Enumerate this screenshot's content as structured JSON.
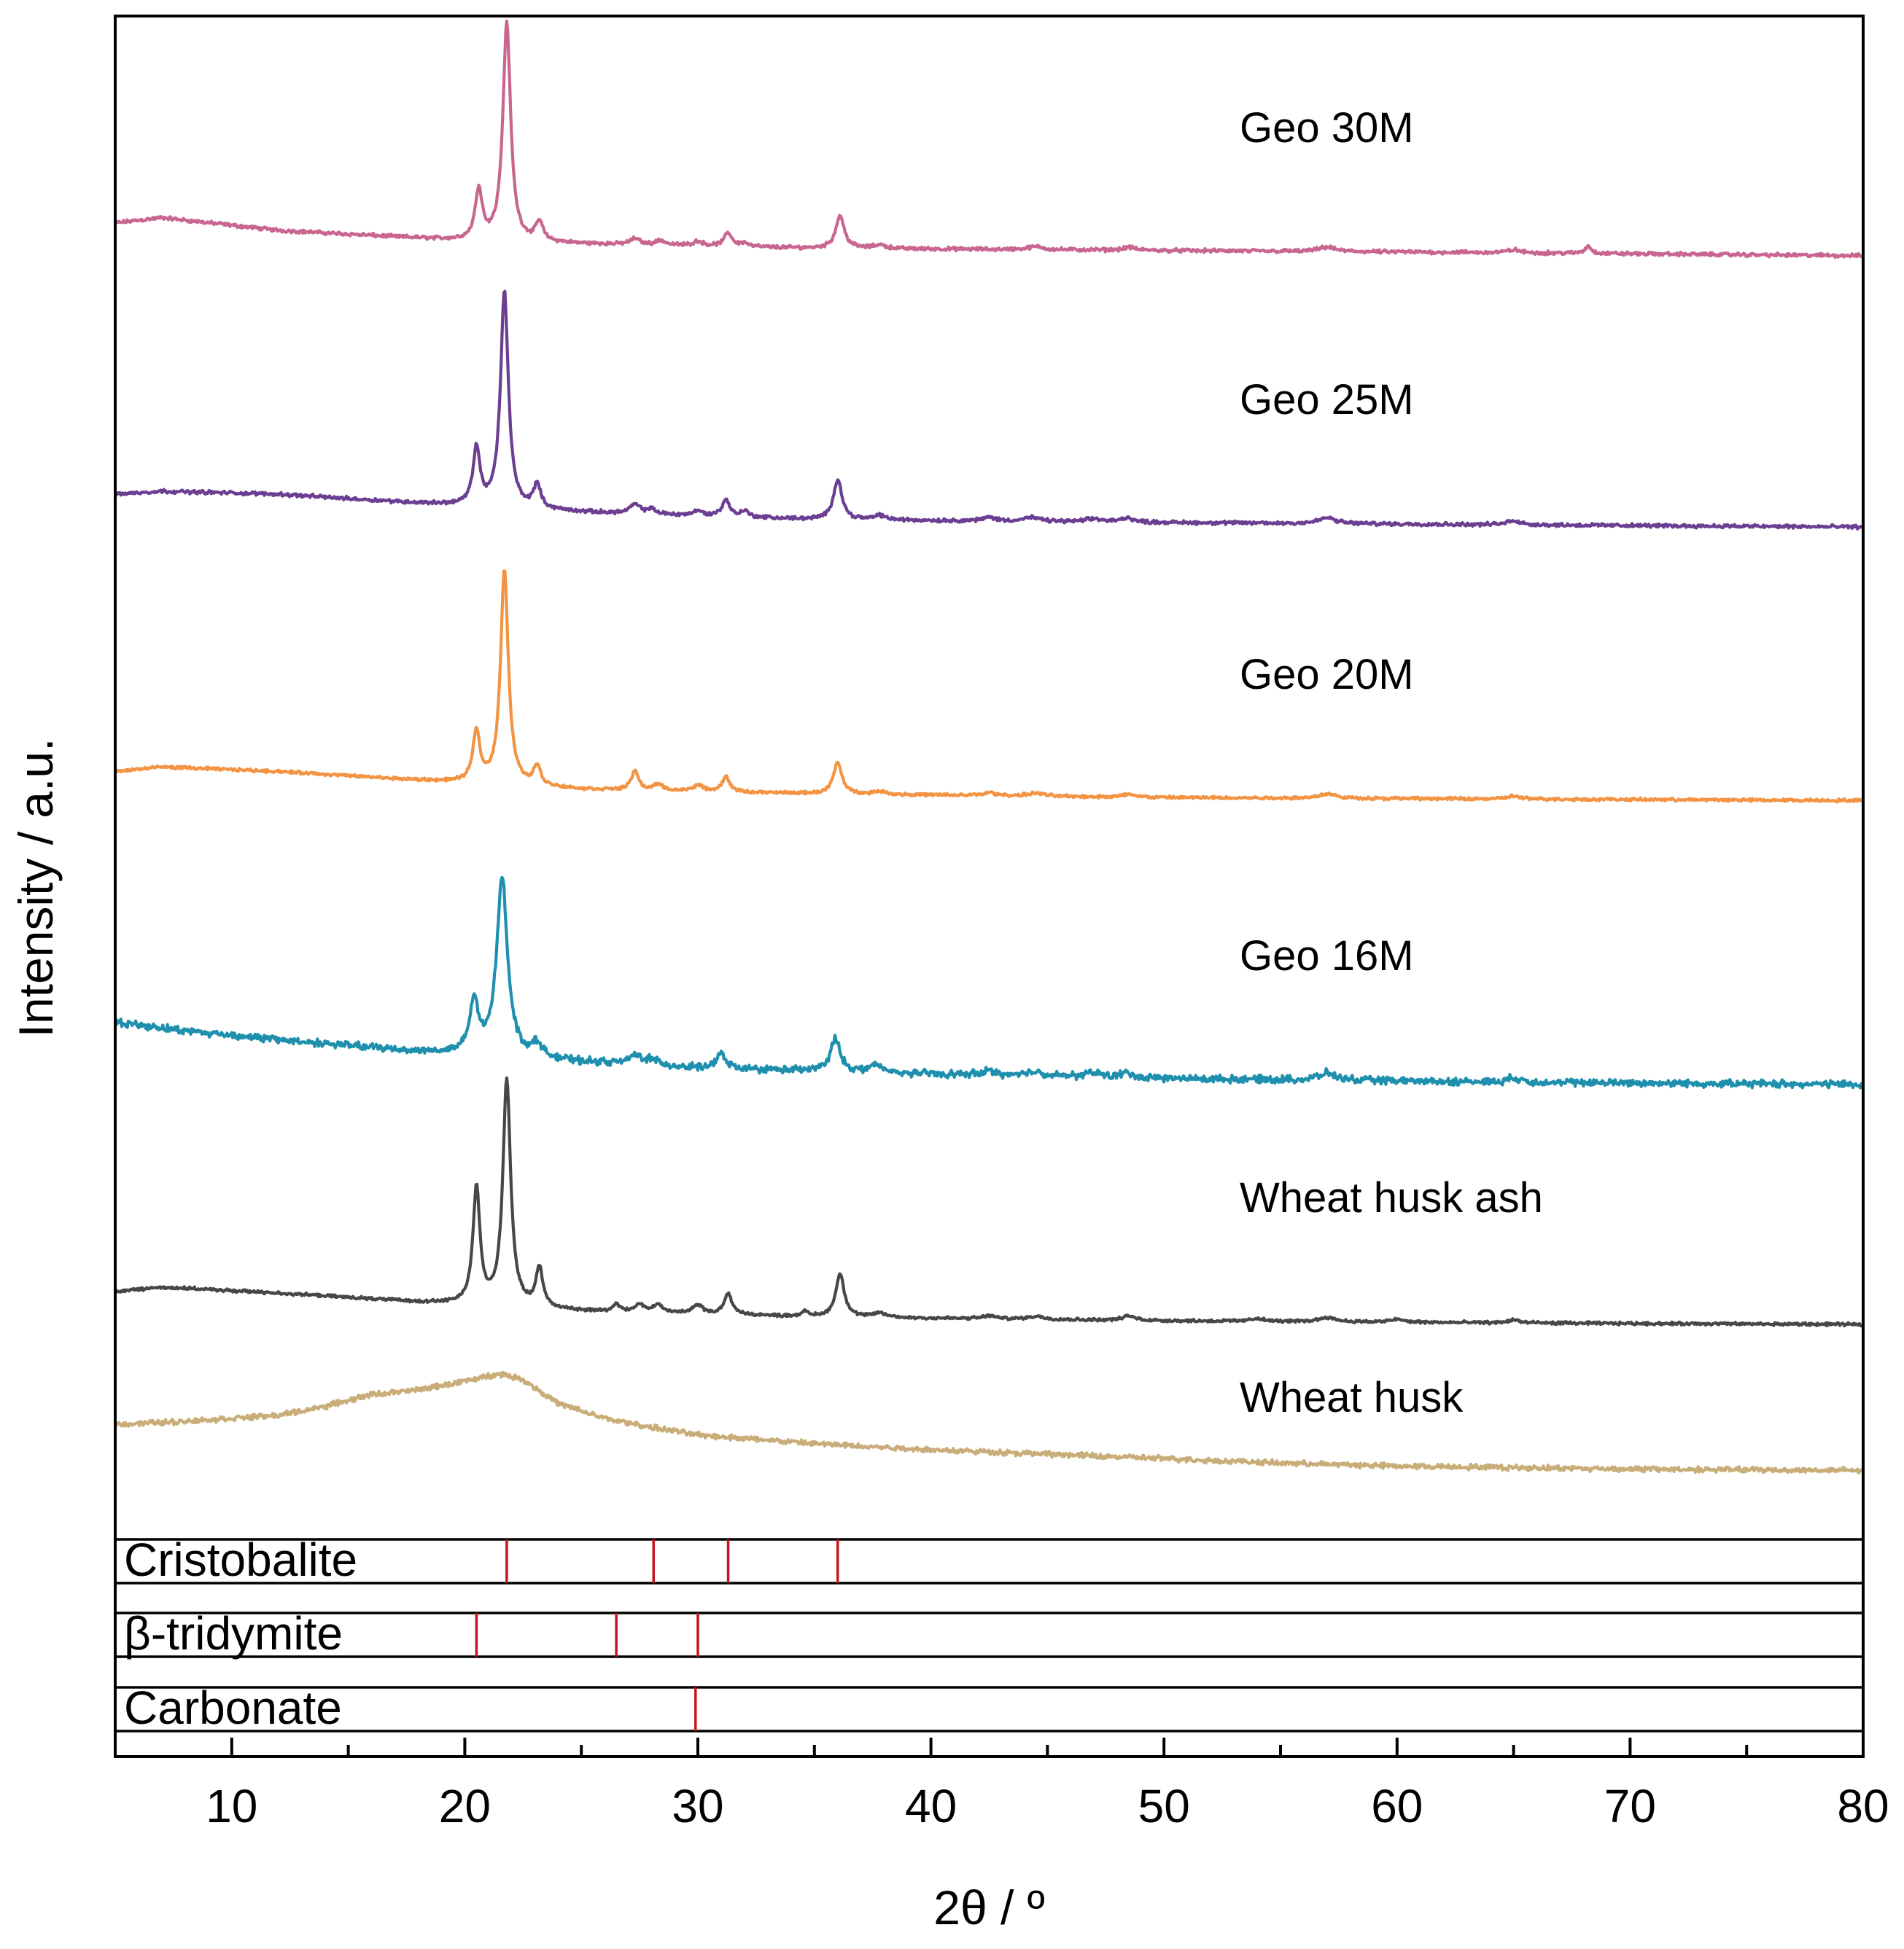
{
  "chart_data": {
    "type": "line",
    "title": "",
    "xlabel": "2θ / º",
    "ylabel": "Intensity / a.u.",
    "xlim": [
      5,
      80
    ],
    "xticks": [
      10,
      20,
      30,
      40,
      50,
      60,
      70,
      80
    ],
    "grid": false,
    "legend": "labels placed right of each curve",
    "y_units": "arbitrary (stacked offsets, 0 = bottom of plotting area, 100 = top)",
    "series": [
      {
        "name": "Geo 30M",
        "color": "#c8668f",
        "noise": 0.15,
        "baseline": [
          [
            5,
            87.0
          ],
          [
            7,
            87.35
          ],
          [
            12,
            86.5
          ],
          [
            20,
            85.8
          ],
          [
            25,
            85.6
          ],
          [
            35,
            85.3
          ],
          [
            50,
            85.15
          ],
          [
            65,
            85.0
          ],
          [
            80,
            84.8
          ]
        ],
        "peaks": [
          [
            20.6,
            3.4,
            0.18
          ],
          [
            21.8,
            14.6,
            0.2
          ],
          [
            23.2,
            1.3,
            0.18
          ],
          [
            27.3,
            0.4,
            0.25
          ],
          [
            28.4,
            0.3,
            0.25
          ],
          [
            30.0,
            0.3,
            0.25
          ],
          [
            31.3,
            0.9,
            0.2
          ],
          [
            32.0,
            0.25,
            0.2
          ],
          [
            36.1,
            2.2,
            0.22
          ],
          [
            37.8,
            0.25,
            0.3
          ],
          [
            44.5,
            0.2,
            0.4
          ],
          [
            48.5,
            0.2,
            0.3
          ],
          [
            57.0,
            0.3,
            0.4
          ],
          [
            65.0,
            0.2,
            0.3
          ],
          [
            68.2,
            0.5,
            0.15
          ]
        ]
      },
      {
        "name": "Geo 25M",
        "color": "#6b3e91",
        "noise": 0.15,
        "baseline": [
          [
            5,
            68.8
          ],
          [
            7,
            69.0
          ],
          [
            12,
            68.8
          ],
          [
            18,
            68.2
          ],
          [
            25,
            67.6
          ],
          [
            35,
            67.1
          ],
          [
            50,
            66.9
          ],
          [
            65,
            66.75
          ],
          [
            80,
            66.6
          ]
        ],
        "peaks": [
          [
            20.5,
            3.8,
            0.18
          ],
          [
            21.7,
            14.5,
            0.2
          ],
          [
            23.1,
            1.6,
            0.18
          ],
          [
            27.3,
            0.6,
            0.25
          ],
          [
            28.0,
            0.3,
            0.25
          ],
          [
            30.0,
            0.3,
            0.25
          ],
          [
            31.2,
            1.1,
            0.2
          ],
          [
            32.0,
            0.4,
            0.2
          ],
          [
            36.0,
            2.7,
            0.22
          ],
          [
            37.8,
            0.3,
            0.3
          ],
          [
            42.5,
            0.25,
            0.3
          ],
          [
            44.3,
            0.25,
            0.4
          ],
          [
            47.0,
            0.2,
            0.4
          ],
          [
            48.4,
            0.3,
            0.3
          ],
          [
            57.0,
            0.4,
            0.4
          ],
          [
            65.0,
            0.3,
            0.3
          ]
        ]
      },
      {
        "name": "Geo 20M",
        "color": "#f39344",
        "noise": 0.12,
        "baseline": [
          [
            5,
            50.2
          ],
          [
            7,
            50.5
          ],
          [
            12,
            50.2
          ],
          [
            18,
            49.6
          ],
          [
            25,
            49.0
          ],
          [
            35,
            48.7
          ],
          [
            50,
            48.45
          ],
          [
            65,
            48.35
          ],
          [
            80,
            48.25
          ]
        ],
        "peaks": [
          [
            20.5,
            3.4,
            0.18
          ],
          [
            21.7,
            14.4,
            0.2
          ],
          [
            23.1,
            1.3,
            0.18
          ],
          [
            27.3,
            1.3,
            0.18
          ],
          [
            28.3,
            0.4,
            0.25
          ],
          [
            30.0,
            0.4,
            0.25
          ],
          [
            31.2,
            1.0,
            0.2
          ],
          [
            36.0,
            2.1,
            0.22
          ],
          [
            37.8,
            0.2,
            0.3
          ],
          [
            42.5,
            0.2,
            0.3
          ],
          [
            44.5,
            0.2,
            0.4
          ],
          [
            48.5,
            0.2,
            0.3
          ],
          [
            57.0,
            0.3,
            0.4
          ],
          [
            65.0,
            0.2,
            0.3
          ]
        ]
      },
      {
        "name": "Geo 16M",
        "color": "#1e8fad",
        "noise": 0.3,
        "baseline": [
          [
            5,
            33.4
          ],
          [
            8,
            32.8
          ],
          [
            12,
            32.2
          ],
          [
            18,
            31.4
          ],
          [
            25,
            30.7
          ],
          [
            30,
            30.3
          ],
          [
            40,
            29.9
          ],
          [
            50,
            29.6
          ],
          [
            65,
            29.35
          ],
          [
            80,
            29.2
          ]
        ],
        "peaks": [
          [
            20.4,
            3.5,
            0.22
          ],
          [
            21.6,
            12.0,
            0.28
          ],
          [
            23.1,
            0.9,
            0.25
          ],
          [
            27.3,
            0.6,
            0.3
          ],
          [
            28.0,
            0.4,
            0.3
          ],
          [
            31.0,
            1.0,
            0.22
          ],
          [
            35.9,
            2.2,
            0.25
          ],
          [
            37.6,
            0.5,
            0.3
          ],
          [
            42.5,
            0.3,
            0.3
          ],
          [
            44.5,
            0.3,
            0.4
          ],
          [
            47.0,
            0.3,
            0.4
          ],
          [
            48.4,
            0.3,
            0.3
          ],
          [
            57.0,
            0.5,
            0.4
          ],
          [
            65.0,
            0.3,
            0.3
          ]
        ]
      },
      {
        "name": "Wheat husk ash",
        "color": "#474747",
        "noise": 0.12,
        "baseline": [
          [
            5,
            15.3
          ],
          [
            7,
            15.6
          ],
          [
            12,
            15.2
          ],
          [
            18,
            14.6
          ],
          [
            25,
            14.0
          ],
          [
            35,
            13.6
          ],
          [
            50,
            13.35
          ],
          [
            65,
            13.2
          ],
          [
            80,
            13.1
          ]
        ],
        "peaks": [
          [
            20.5,
            7.8,
            0.18
          ],
          [
            21.8,
            15.2,
            0.2
          ],
          [
            23.2,
            2.6,
            0.18
          ],
          [
            26.5,
            0.5,
            0.18
          ],
          [
            27.5,
            0.5,
            0.25
          ],
          [
            28.3,
            0.5,
            0.25
          ],
          [
            30.0,
            0.6,
            0.25
          ],
          [
            31.3,
            1.4,
            0.2
          ],
          [
            34.6,
            0.3,
            0.2
          ],
          [
            36.1,
            2.9,
            0.22
          ],
          [
            37.8,
            0.3,
            0.3
          ],
          [
            42.5,
            0.2,
            0.3
          ],
          [
            44.5,
            0.2,
            0.4
          ],
          [
            48.5,
            0.3,
            0.3
          ],
          [
            54.0,
            0.2,
            0.3
          ],
          [
            57.0,
            0.3,
            0.4
          ],
          [
            60.0,
            0.2,
            0.3
          ],
          [
            65.0,
            0.2,
            0.3
          ]
        ]
      },
      {
        "name": "Wheat husk",
        "color": "#c9ad79",
        "noise": 0.22,
        "baseline": [
          [
            5,
            6.4
          ],
          [
            8,
            6.6
          ],
          [
            12,
            7.0
          ],
          [
            14,
            7.6
          ],
          [
            16,
            8.4
          ],
          [
            18,
            8.7
          ],
          [
            20,
            9.3
          ],
          [
            21.5,
            9.8
          ],
          [
            22.5,
            9.4
          ],
          [
            24,
            7.8
          ],
          [
            26,
            6.8
          ],
          [
            28,
            6.2
          ],
          [
            30,
            5.7
          ],
          [
            35,
            5.1
          ],
          [
            40,
            4.7
          ],
          [
            45,
            4.4
          ],
          [
            50,
            4.1
          ],
          [
            55,
            3.8
          ],
          [
            60,
            3.6
          ],
          [
            65,
            3.5
          ],
          [
            70,
            3.4
          ],
          [
            75,
            3.35
          ],
          [
            80,
            3.3
          ]
        ],
        "peaks": []
      }
    ],
    "reference_panels": [
      {
        "name": "Cristobalite",
        "lines": [
          21.8,
          28.1,
          31.3,
          36.0
        ],
        "line_color": "#c8141e"
      },
      {
        "name": "β-tridymite",
        "lines": [
          20.5,
          26.5,
          30.0
        ],
        "line_color": "#c8141e"
      },
      {
        "name": "Carbonate",
        "lines": [
          29.9
        ],
        "line_color": "#c8141e"
      }
    ]
  }
}
